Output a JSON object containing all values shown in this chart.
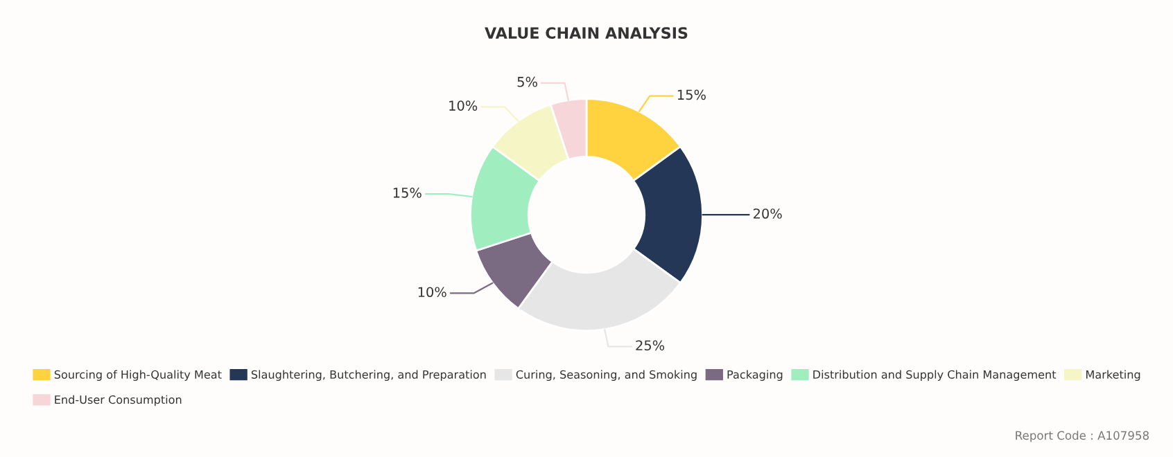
{
  "chart_data": {
    "type": "donut",
    "title": "VALUE CHAIN ANALYSIS",
    "categories": [
      "Sourcing of High-Quality Meat",
      "Slaughtering, Butchering, and Preparation",
      "Curing, Seasoning, and Smoking",
      "Packaging",
      "Distribution and Supply Chain Management",
      "Marketing",
      "End-User Consumption"
    ],
    "values": [
      15,
      20,
      25,
      10,
      15,
      10,
      5
    ],
    "value_labels": [
      "15%",
      "20%",
      "25%",
      "10%",
      "15%",
      "10%",
      "5%"
    ],
    "colors": [
      "#ffd23f",
      "#243757",
      "#e6e6e6",
      "#7b6b82",
      "#a0eec0",
      "#f6f5c6",
      "#f6d6d8"
    ],
    "legend": "bottom",
    "annotations": [
      "Report Code : A107958"
    ]
  }
}
